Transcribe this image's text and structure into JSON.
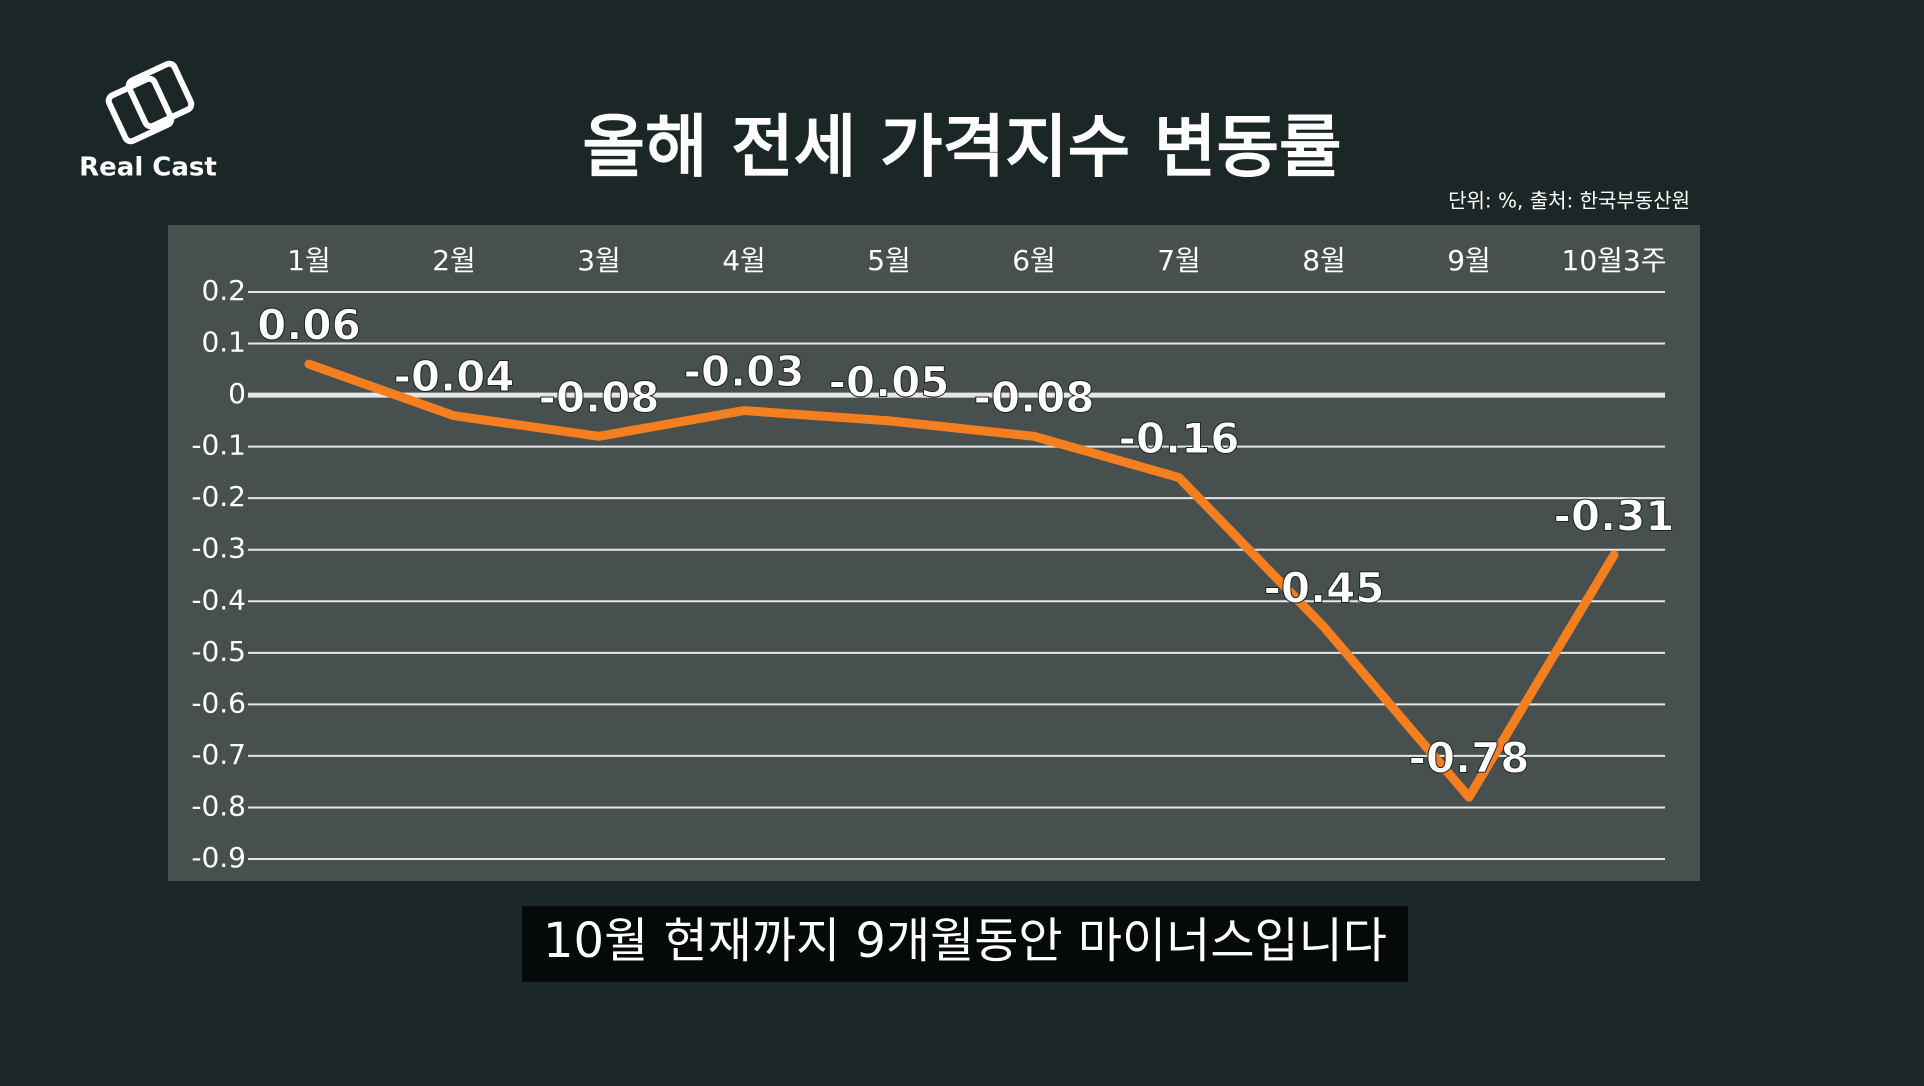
{
  "logo": "Real Cast",
  "caption": "10월 현재까지 9개월동안 마이너스입니다",
  "chart_data": {
    "type": "line",
    "title": "올해 전세 가격지수 변동률",
    "subtitle": "단위: %, 출처: 한국부동산원",
    "categories": [
      "1월",
      "2월",
      "3월",
      "4월",
      "5월",
      "6월",
      "7월",
      "8월",
      "9월",
      "10월3주"
    ],
    "series": [
      {
        "name": "전세 가격지수 변동률",
        "color": "#f57f1f",
        "values": [
          0.06,
          -0.04,
          -0.08,
          -0.03,
          -0.05,
          -0.08,
          -0.16,
          -0.45,
          -0.78,
          -0.31
        ]
      }
    ],
    "ylim": [
      -0.9,
      0.2
    ],
    "yticks": [
      0.2,
      0.1,
      0,
      -0.1,
      -0.2,
      -0.3,
      -0.4,
      -0.5,
      -0.6,
      -0.7,
      -0.8,
      -0.9
    ],
    "grid": true
  }
}
